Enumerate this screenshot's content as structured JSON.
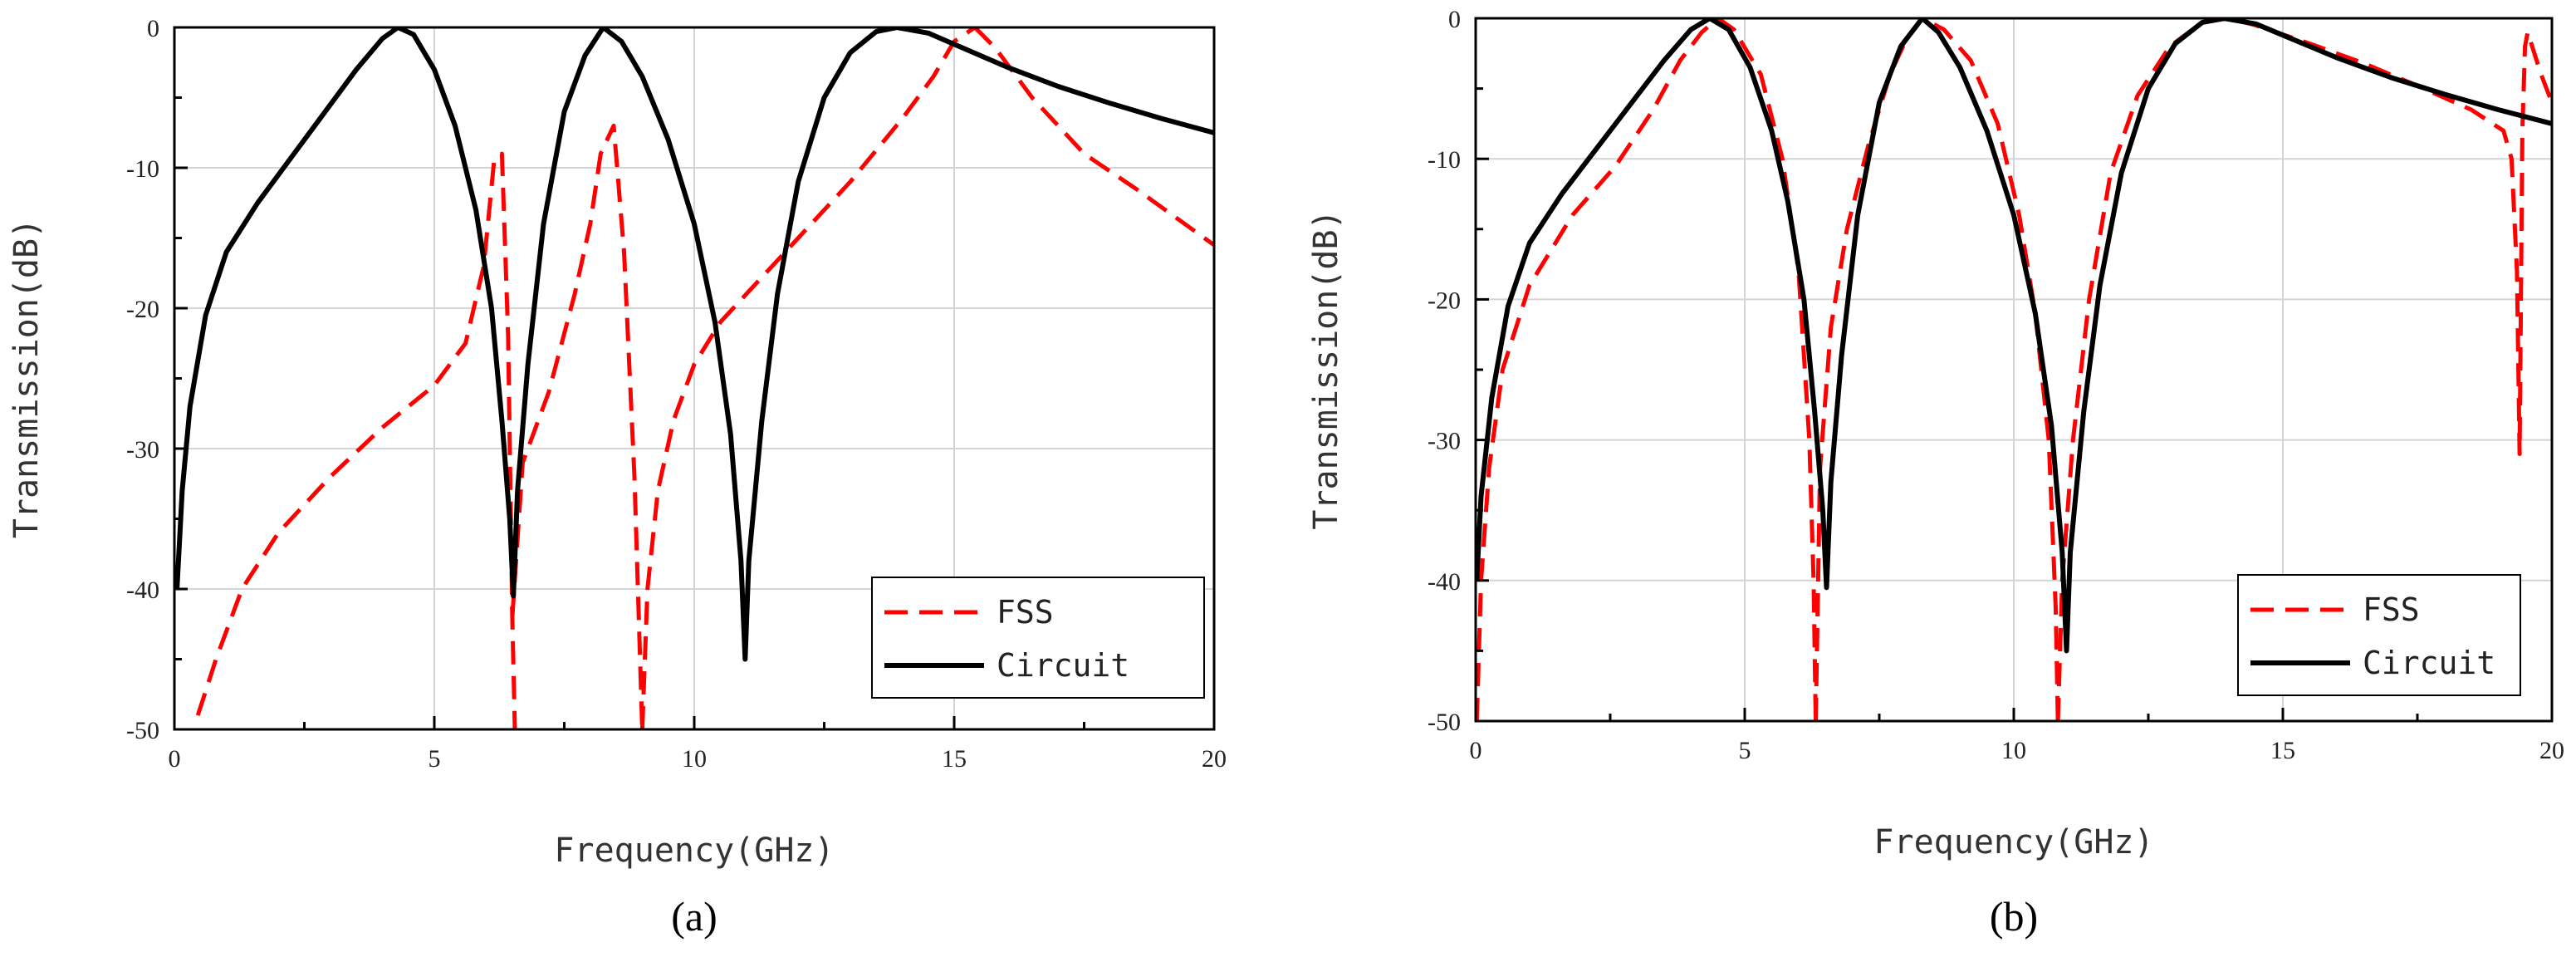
{
  "chart_data": [
    {
      "type": "line",
      "panel_label": "(a)",
      "xlabel": "Frequency(GHz)",
      "ylabel": "Transmission(dB)",
      "xlim": [
        0,
        20
      ],
      "ylim": [
        -50,
        0
      ],
      "xticks": [
        0,
        5,
        10,
        15,
        20
      ],
      "yticks": [
        0,
        -10,
        -20,
        -30,
        -40,
        -50
      ],
      "grid": true,
      "legend_position": "bottom-right",
      "series": [
        {
          "name": "FSS",
          "color": "#ff0000",
          "style": "dashed",
          "points": [
            [
              0.45,
              -49
            ],
            [
              0.8,
              -45
            ],
            [
              1.3,
              -40
            ],
            [
              2,
              -36
            ],
            [
              3,
              -32
            ],
            [
              4,
              -28.5
            ],
            [
              5,
              -25.5
            ],
            [
              5.6,
              -22.5
            ],
            [
              5.95,
              -17
            ],
            [
              6.15,
              -9.5
            ],
            [
              6.3,
              -9
            ],
            [
              6.42,
              -22
            ],
            [
              6.5,
              -42
            ],
            [
              6.55,
              -50
            ]
          ],
          "segments": [
            [
              [
                0.45,
                -49
              ],
              [
                0.8,
                -45
              ],
              [
                1.3,
                -40
              ],
              [
                2,
                -36
              ],
              [
                3,
                -32
              ],
              [
                4,
                -28.5
              ],
              [
                5,
                -25.5
              ],
              [
                5.6,
                -22.5
              ],
              [
                5.95,
                -17
              ],
              [
                6.15,
                -9.5
              ],
              [
                6.3,
                -9
              ],
              [
                6.42,
                -22
              ],
              [
                6.5,
                -42
              ],
              [
                6.55,
                -50
              ]
            ],
            [
              [
                6.5,
                -42
              ],
              [
                6.7,
                -31
              ],
              [
                7.2,
                -26
              ],
              [
                7.7,
                -19
              ],
              [
                8.0,
                -14
              ],
              [
                8.2,
                -9
              ],
              [
                8.45,
                -7
              ],
              [
                8.65,
                -16
              ],
              [
                8.85,
                -32
              ],
              [
                9.0,
                -50
              ]
            ],
            [
              [
                9.0,
                -50
              ],
              [
                9.1,
                -40
              ],
              [
                9.3,
                -33
              ],
              [
                9.6,
                -28
              ],
              [
                10.0,
                -24
              ],
              [
                10.5,
                -21
              ],
              [
                11,
                -19
              ],
              [
                12,
                -15
              ],
              [
                13,
                -11
              ],
              [
                14,
                -6.5
              ],
              [
                14.6,
                -3.5
              ],
              [
                15.0,
                -1
              ],
              [
                15.4,
                0
              ]
            ],
            [
              [
                15.4,
                0
              ],
              [
                15.8,
                -1.5
              ],
              [
                16.5,
                -5
              ],
              [
                17.5,
                -9
              ],
              [
                18.5,
                -11.5
              ],
              [
                20,
                -15.5
              ]
            ]
          ]
        },
        {
          "name": "Circuit",
          "color": "#000000",
          "style": "solid",
          "segments": [
            [
              [
                0.05,
                -40
              ],
              [
                0.15,
                -33
              ],
              [
                0.3,
                -27
              ],
              [
                0.6,
                -20.5
              ],
              [
                1.0,
                -16
              ],
              [
                1.6,
                -12.5
              ],
              [
                2.3,
                -9
              ],
              [
                3.0,
                -5.5
              ],
              [
                3.5,
                -3
              ],
              [
                4.0,
                -0.8
              ],
              [
                4.3,
                0
              ],
              [
                4.6,
                -0.5
              ],
              [
                5.0,
                -3
              ],
              [
                5.4,
                -7
              ],
              [
                5.8,
                -13
              ],
              [
                6.1,
                -20
              ],
              [
                6.3,
                -28
              ],
              [
                6.45,
                -35
              ],
              [
                6.52,
                -40.5
              ],
              [
                6.6,
                -33
              ],
              [
                6.8,
                -24
              ],
              [
                7.1,
                -14
              ],
              [
                7.5,
                -6
              ],
              [
                7.9,
                -2
              ],
              [
                8.25,
                0
              ],
              [
                8.6,
                -1
              ],
              [
                9.0,
                -3.5
              ],
              [
                9.5,
                -8
              ],
              [
                10.0,
                -14
              ],
              [
                10.4,
                -21
              ],
              [
                10.7,
                -29
              ],
              [
                10.9,
                -38
              ],
              [
                10.98,
                -45
              ],
              [
                11.05,
                -38
              ],
              [
                11.3,
                -28
              ],
              [
                11.6,
                -19
              ],
              [
                12.0,
                -11
              ],
              [
                12.5,
                -5
              ],
              [
                13.0,
                -1.8
              ],
              [
                13.5,
                -0.3
              ],
              [
                13.9,
                0
              ],
              [
                14.5,
                -0.4
              ],
              [
                15.0,
                -1.2
              ],
              [
                16,
                -2.8
              ],
              [
                17,
                -4.2
              ],
              [
                18,
                -5.4
              ],
              [
                19,
                -6.5
              ],
              [
                20,
                -7.5
              ]
            ]
          ]
        }
      ]
    },
    {
      "type": "line",
      "panel_label": "(b)",
      "xlabel": "Frequency(GHz)",
      "ylabel": "Transmission(dB)",
      "xlim": [
        0,
        20
      ],
      "ylim": [
        -50,
        0
      ],
      "xticks": [
        0,
        5,
        10,
        15,
        20
      ],
      "yticks": [
        0,
        -10,
        -20,
        -30,
        -40,
        -50
      ],
      "grid": true,
      "legend_position": "bottom-right",
      "series": [
        {
          "name": "FSS",
          "color": "#ff0000",
          "style": "dashed",
          "segments": [
            [
              [
                0.02,
                -50
              ],
              [
                0.1,
                -40
              ],
              [
                0.25,
                -32
              ],
              [
                0.5,
                -25
              ],
              [
                1.0,
                -19
              ],
              [
                1.8,
                -14
              ],
              [
                2.6,
                -10.5
              ],
              [
                3.3,
                -6.5
              ],
              [
                3.8,
                -3
              ],
              [
                4.2,
                -1
              ],
              [
                4.5,
                0
              ],
              [
                4.8,
                -0.8
              ],
              [
                5.3,
                -4
              ],
              [
                5.7,
                -10
              ],
              [
                6.0,
                -18
              ],
              [
                6.2,
                -30
              ],
              [
                6.28,
                -40
              ],
              [
                6.32,
                -50
              ]
            ],
            [
              [
                6.32,
                -50
              ],
              [
                6.4,
                -32
              ],
              [
                6.6,
                -22
              ],
              [
                6.9,
                -15
              ],
              [
                7.3,
                -9
              ],
              [
                7.7,
                -4
              ],
              [
                8.0,
                -1.5
              ],
              [
                8.3,
                0
              ],
              [
                8.7,
                -0.8
              ],
              [
                9.2,
                -3
              ],
              [
                9.7,
                -7.5
              ],
              [
                10.1,
                -14
              ],
              [
                10.4,
                -21
              ],
              [
                10.65,
                -30
              ],
              [
                10.78,
                -42
              ],
              [
                10.82,
                -50
              ]
            ],
            [
              [
                10.82,
                -50
              ],
              [
                10.9,
                -40
              ],
              [
                11.1,
                -30
              ],
              [
                11.4,
                -20
              ],
              [
                11.8,
                -11
              ],
              [
                12.3,
                -5.5
              ],
              [
                12.9,
                -2
              ],
              [
                13.5,
                -0.3
              ],
              [
                14.0,
                0
              ],
              [
                14.5,
                -0.5
              ],
              [
                15.5,
                -1.8
              ],
              [
                16.5,
                -3.2
              ],
              [
                17.5,
                -4.8
              ],
              [
                18.5,
                -6.5
              ],
              [
                19.1,
                -8
              ],
              [
                19.25,
                -10
              ],
              [
                19.35,
                -18
              ],
              [
                19.4,
                -31
              ],
              [
                19.42,
                -22
              ],
              [
                19.45,
                -8
              ],
              [
                19.5,
                -2
              ],
              [
                19.55,
                -1
              ],
              [
                19.8,
                -4
              ],
              [
                20,
                -6
              ]
            ]
          ]
        },
        {
          "name": "Circuit",
          "color": "#000000",
          "style": "solid",
          "segments": [
            [
              [
                0.02,
                -40
              ],
              [
                0.1,
                -34
              ],
              [
                0.3,
                -27
              ],
              [
                0.6,
                -20.5
              ],
              [
                1.0,
                -16
              ],
              [
                1.6,
                -12.5
              ],
              [
                2.3,
                -9
              ],
              [
                3.0,
                -5.5
              ],
              [
                3.5,
                -3
              ],
              [
                4.0,
                -0.8
              ],
              [
                4.35,
                0
              ],
              [
                4.7,
                -0.8
              ],
              [
                5.1,
                -3.5
              ],
              [
                5.5,
                -8
              ],
              [
                5.8,
                -13
              ],
              [
                6.1,
                -20
              ],
              [
                6.3,
                -28
              ],
              [
                6.45,
                -35
              ],
              [
                6.52,
                -40.5
              ],
              [
                6.6,
                -33
              ],
              [
                6.8,
                -24
              ],
              [
                7.1,
                -14
              ],
              [
                7.5,
                -6
              ],
              [
                7.9,
                -2
              ],
              [
                8.3,
                0
              ],
              [
                8.6,
                -1
              ],
              [
                9.0,
                -3.5
              ],
              [
                9.5,
                -8
              ],
              [
                10.0,
                -14
              ],
              [
                10.4,
                -21
              ],
              [
                10.7,
                -29
              ],
              [
                10.9,
                -38
              ],
              [
                10.98,
                -45
              ],
              [
                11.05,
                -38
              ],
              [
                11.3,
                -28
              ],
              [
                11.6,
                -19
              ],
              [
                12.0,
                -11
              ],
              [
                12.5,
                -5
              ],
              [
                13.0,
                -1.8
              ],
              [
                13.5,
                -0.3
              ],
              [
                13.9,
                0
              ],
              [
                14.5,
                -0.4
              ],
              [
                15.0,
                -1.2
              ],
              [
                16,
                -2.8
              ],
              [
                17,
                -4.2
              ],
              [
                18,
                -5.4
              ],
              [
                19,
                -6.5
              ],
              [
                20,
                -7.5
              ]
            ]
          ]
        }
      ]
    }
  ]
}
